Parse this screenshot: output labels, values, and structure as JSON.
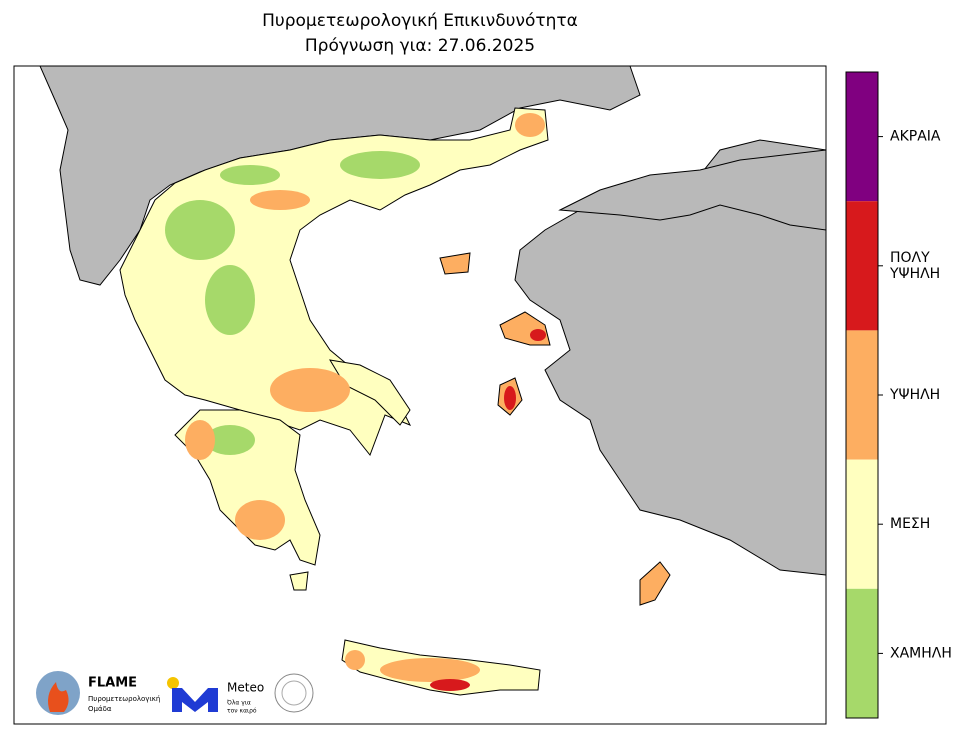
{
  "title": [
    "Πυρομετεωρολογική Επικινδυνότητα",
    "Πρόγνωση για: 27.06.2025"
  ],
  "legend": {
    "levels": [
      {
        "label": [
          "ΑΚΡΑΙΑ"
        ],
        "color": "#800080"
      },
      {
        "label": [
          "ΠΟΛΥ",
          "ΥΨΗΛΗ"
        ],
        "color": "#d7191c"
      },
      {
        "label": [
          "ΥΨΗΛΗ"
        ],
        "color": "#fdae61"
      },
      {
        "label": [
          "ΜΕΣΗ"
        ],
        "color": "#ffffbf"
      },
      {
        "label": [
          "ΧΑΜΗΛΗ"
        ],
        "color": "#a6d96a"
      }
    ]
  },
  "logos": {
    "flame": {
      "name": "FLAME",
      "subtitle": [
        "Πυρομετεωρολογική",
        "Ομάδα"
      ]
    },
    "meteo": {
      "name": "Meteo",
      "tagline": [
        "Όλα για",
        "τον καιρό"
      ]
    }
  }
}
